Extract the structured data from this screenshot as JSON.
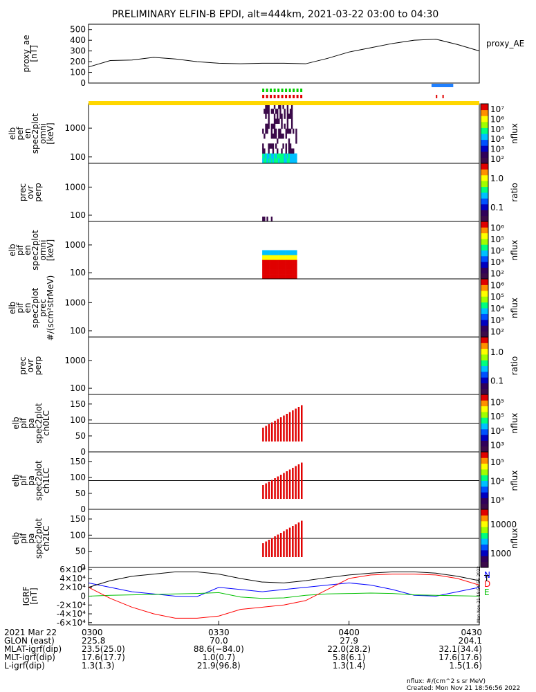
{
  "title": "PRELIMINARY ELFIN-B EPDI, alt=444km, 2021-03-22 03:00 to 04:30",
  "footer": {
    "units_note": "nflux: #/(cm^2 s sr MeV)",
    "created": "Created: Mon Nov 21 18:56:56 2022",
    "side_stamp": "Mon Nov 21 18:56:56 2022"
  },
  "colors": {
    "igrf_n": "#0000ff",
    "igrf_e": "#00c000",
    "igrf_d": "#ff0000",
    "igrf_t": "#000000",
    "bar_yellow": "#ffd700",
    "bar_green": "#00d000",
    "bar_red": "#e00000",
    "bar_blue": "#2080ff"
  },
  "chart_data": [
    {
      "id": "proxy_ae",
      "type": "line",
      "ylabel": [
        "proxy_ae",
        "[nT]"
      ],
      "legend": "proxy_AE",
      "ylim": [
        0,
        550
      ],
      "yticks": [
        "0",
        "100",
        "200",
        "300",
        "400",
        "500"
      ],
      "x_minutes": [
        0,
        5,
        10,
        15,
        20,
        25,
        30,
        35,
        40,
        45,
        50,
        55,
        60,
        65,
        70,
        75,
        80,
        85,
        90
      ],
      "values": [
        150,
        210,
        215,
        240,
        225,
        200,
        185,
        180,
        185,
        185,
        180,
        230,
        290,
        330,
        370,
        400,
        410,
        360,
        300
      ]
    },
    {
      "id": "elb_pef_en",
      "type": "heatmap",
      "ylabel": [
        "elb",
        "pef",
        "en",
        "spec2plot",
        "omni",
        "[keV]"
      ],
      "yscale": "log",
      "ylim": [
        60,
        7000
      ],
      "yticks": [
        "100",
        "1000"
      ],
      "colorbar": {
        "label": "nflux",
        "ticks": [
          "10²",
          "10³",
          "10⁴",
          "10⁵",
          "10⁶",
          "10⁷"
        ]
      },
      "time_range_minutes": [
        40,
        48
      ]
    },
    {
      "id": "prec_ovr_perp_1",
      "type": "heatmap",
      "ylabel": [
        "prec",
        "ovr",
        "perp"
      ],
      "yscale": "log",
      "ylim": [
        60,
        7000
      ],
      "yticks": [
        "100",
        "1000"
      ],
      "colorbar": {
        "label": "ratio",
        "ticks": [
          "0.1",
          "1.0"
        ]
      },
      "time_range_minutes": [
        40,
        45
      ]
    },
    {
      "id": "elb_pif_en",
      "type": "heatmap",
      "ylabel": [
        "elb",
        "pif",
        "en",
        "spec2plot",
        "omni",
        "[keV]"
      ],
      "yscale": "log",
      "ylim": [
        60,
        7000
      ],
      "yticks": [
        "100",
        "1000"
      ],
      "colorbar": {
        "label": "nflux",
        "ticks": [
          "10²",
          "10³",
          "10⁴",
          "10⁵",
          "10⁶"
        ]
      },
      "time_range_minutes": [
        40,
        48
      ]
    },
    {
      "id": "elb_pif_en_prec",
      "type": "heatmap",
      "ylabel": [
        "elb",
        "pif",
        "en",
        "spec2plot",
        "prec",
        "#/(scm²strMeV)"
      ],
      "yscale": "log",
      "ylim": [
        60,
        7000
      ],
      "yticks": [
        "100",
        "1000"
      ],
      "colorbar": {
        "label": "nflux",
        "ticks": [
          "10²",
          "10³",
          "10⁴",
          "10⁵",
          "10⁶"
        ]
      }
    },
    {
      "id": "prec_ovr_perp_2",
      "type": "heatmap",
      "ylabel": [
        "prec",
        "ovr",
        "perp"
      ],
      "yscale": "log",
      "ylim": [
        60,
        7000
      ],
      "yticks": [
        "100",
        "1000"
      ],
      "colorbar": {
        "label": "ratio",
        "ticks": [
          "0.1",
          "1.0"
        ]
      }
    },
    {
      "id": "elb_pif_pa_ch0",
      "type": "heatmap",
      "ylabel": [
        "elb",
        "pif",
        "pa",
        "spec2plot",
        "ch0LC"
      ],
      "ylim": [
        0,
        180
      ],
      "yticks": [
        "0",
        "50",
        "100",
        "150"
      ],
      "hline": 90,
      "colorbar": {
        "label": "nflux",
        "ticks": [
          "10³",
          "10⁴",
          "10⁵",
          "10⁵"
        ]
      }
    },
    {
      "id": "elb_pif_pa_ch1",
      "type": "heatmap",
      "ylabel": [
        "elb",
        "pif",
        "pa",
        "spec2plot",
        "ch1LC"
      ],
      "ylim": [
        0,
        180
      ],
      "yticks": [
        "0",
        "50",
        "100",
        "150"
      ],
      "hline": 90,
      "colorbar": {
        "label": "nflux",
        "ticks": [
          "10³",
          "10⁴",
          "10⁵"
        ]
      }
    },
    {
      "id": "elb_pif_pa_ch2",
      "type": "heatmap",
      "ylabel": [
        "elb",
        "pif",
        "pa",
        "spec2plot",
        "ch2LC"
      ],
      "ylim": [
        0,
        180
      ],
      "yticks": [
        "0",
        "50",
        "100",
        "150"
      ],
      "hline": 90,
      "colorbar": {
        "label": "nflux",
        "ticks": [
          "1000",
          "10000"
        ]
      }
    },
    {
      "id": "igrf",
      "type": "line",
      "ylabel": [
        "IGRF",
        "[nT]"
      ],
      "ylim": [
        -65000,
        65000
      ],
      "yticks": [
        "-6×10⁴",
        "-4×10⁴",
        "-2×10⁴",
        "0",
        "2×10⁴",
        "4×10⁴",
        "6×10⁴"
      ],
      "legend": [
        "N",
        "E",
        "D",
        "T"
      ],
      "x_minutes": [
        0,
        5,
        10,
        15,
        20,
        25,
        30,
        35,
        40,
        45,
        50,
        55,
        60,
        65,
        70,
        75,
        80,
        85,
        90
      ],
      "series": [
        {
          "name": "N",
          "values": [
            30000,
            20000,
            10000,
            5000,
            0,
            -1000,
            20000,
            15000,
            10000,
            15000,
            20000,
            25000,
            30000,
            25000,
            15000,
            2000,
            0,
            10000,
            20000
          ]
        },
        {
          "name": "E",
          "values": [
            0,
            2000,
            3000,
            4000,
            5000,
            6000,
            8000,
            -2000,
            -5000,
            -4000,
            2000,
            5000,
            6000,
            7000,
            6000,
            3000,
            2000,
            1000,
            0
          ]
        },
        {
          "name": "D",
          "values": [
            20000,
            -5000,
            -25000,
            -40000,
            -50000,
            -50000,
            -45000,
            -30000,
            -25000,
            -20000,
            -10000,
            15000,
            40000,
            48000,
            50000,
            50000,
            48000,
            40000,
            25000
          ]
        },
        {
          "name": "T",
          "values": [
            20000,
            35000,
            45000,
            50000,
            55000,
            55000,
            50000,
            40000,
            32000,
            30000,
            35000,
            42000,
            48000,
            52000,
            55000,
            55000,
            52000,
            45000,
            35000
          ]
        }
      ]
    }
  ],
  "time_axis": {
    "row_labels": [
      "2021 Mar 22",
      "GLON (east)",
      "MLAT-igrf(dip)",
      "MLT-igrf(dip)",
      "L-igrf(dip)"
    ],
    "columns": [
      {
        "time": "0300",
        "glon": "225.8",
        "mlat": "23.5(25.0)",
        "mlt": "17.6(17.7)",
        "l": "1.3(1.3)"
      },
      {
        "time": "0330",
        "glon": "70.0",
        "mlat": "88.6(−84.0)",
        "mlt": "1.0(0.7)",
        "l": "21.9(96.8)"
      },
      {
        "time": "0400",
        "glon": "27.9",
        "mlat": "22.0(28.2)",
        "mlt": "5.8(6.1)",
        "l": "1.3(1.4)"
      },
      {
        "time": "0430",
        "glon": "204.1",
        "mlat": "32.1(34.4)",
        "mlt": "17.6(17.6)",
        "l": "1.5(1.6)"
      }
    ]
  }
}
